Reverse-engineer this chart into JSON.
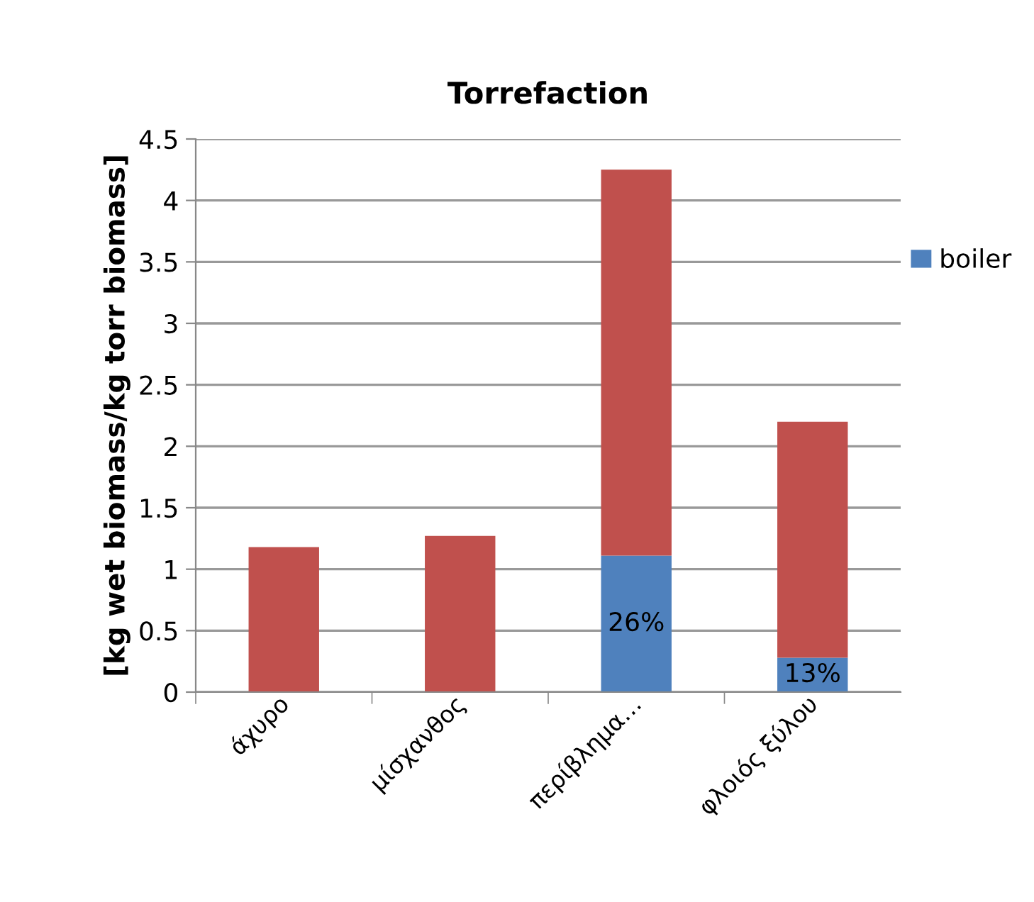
{
  "chart_data": {
    "type": "bar",
    "title": "Torrefaction",
    "ylabel": "[kg wet biomass/kg torr biomass]",
    "categories": [
      "άχυρο",
      "μίσχανθος",
      "περίβλημα…",
      "φλοιός ξύλου"
    ],
    "stacked": true,
    "series": [
      {
        "name": "boiler",
        "color": "#4f81bd",
        "values": [
          0,
          0,
          1.11,
          0.28
        ]
      },
      {
        "color": "#c0504d",
        "values": [
          1.18,
          1.27,
          3.14,
          1.92
        ]
      }
    ],
    "ylim": [
      0,
      4.5
    ],
    "yticks": [
      0,
      0.5,
      1,
      1.5,
      2,
      2.5,
      3,
      3.5,
      4,
      4.5
    ],
    "annotations": [
      {
        "text": "26%",
        "x": "περίβλημα…",
        "y": 1.11
      },
      {
        "text": "13%",
        "x": "φλοιός ξύλου",
        "y": 0.28
      }
    ],
    "grid": "y",
    "legend": "right"
  }
}
